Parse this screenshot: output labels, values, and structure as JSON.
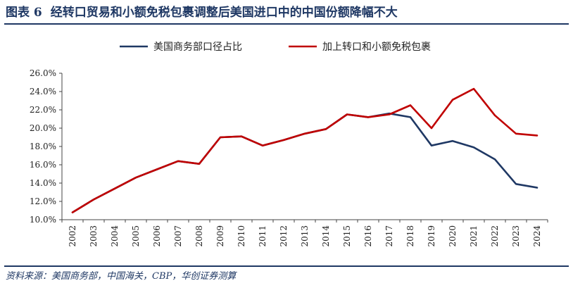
{
  "header": {
    "figure_label": "图表 6",
    "title": "经转口贸易和小额免税包裹调整后美国进口中的中国份额降幅不大"
  },
  "footer": {
    "source": "资料来源：美国商务部，中国海关，CBP，华创证券测算"
  },
  "chart_data": {
    "type": "line",
    "title": "",
    "xlabel": "",
    "ylabel": "",
    "x": [
      "2002",
      "2003",
      "2004",
      "2005",
      "2006",
      "2007",
      "2008",
      "2009",
      "2010",
      "2011",
      "2012",
      "2013",
      "2014",
      "2015",
      "2016",
      "2017",
      "2018",
      "2019",
      "2020",
      "2021",
      "2022",
      "2023",
      "2024"
    ],
    "ylim": [
      10.0,
      26.0
    ],
    "yticks": [
      "26.0%",
      "24.0%",
      "22.0%",
      "20.0%",
      "18.0%",
      "16.0%",
      "14.0%",
      "12.0%",
      "10.0%"
    ],
    "ytick_values": [
      26,
      24,
      22,
      20,
      18,
      16,
      14,
      12,
      10
    ],
    "legend_position": "top-center",
    "grid": false,
    "series": [
      {
        "name": "美国商务部口径占比",
        "color": "#1f3864",
        "values": [
          10.8,
          12.2,
          13.4,
          14.6,
          15.5,
          16.4,
          16.1,
          19.0,
          19.1,
          18.1,
          18.7,
          19.4,
          19.9,
          21.5,
          21.2,
          21.6,
          21.2,
          18.1,
          18.6,
          17.9,
          16.6,
          13.9,
          13.5
        ]
      },
      {
        "name": "加上转口和小额免税包裹",
        "color": "#c00000",
        "values": [
          10.8,
          12.2,
          13.4,
          14.6,
          15.5,
          16.4,
          16.1,
          19.0,
          19.1,
          18.1,
          18.7,
          19.4,
          19.9,
          21.5,
          21.2,
          21.5,
          22.5,
          20.0,
          23.1,
          24.3,
          21.4,
          19.4,
          19.2
        ]
      }
    ]
  }
}
